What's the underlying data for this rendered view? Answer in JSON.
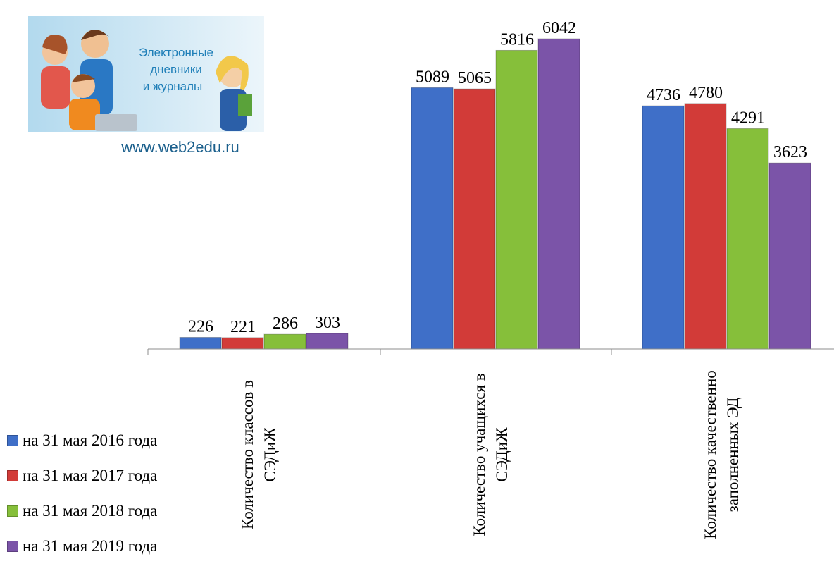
{
  "logo": {
    "lines": [
      "Электронные",
      "дневники",
      "и журналы"
    ],
    "url": "www.web2edu.ru"
  },
  "chart_data": {
    "type": "bar",
    "categories": [
      [
        "Количество классов в",
        "СЭДиЖ"
      ],
      [
        "Количество учащихся в",
        "СЭДиЖ"
      ],
      [
        "Количество качественно",
        "заполненных ЭД"
      ]
    ],
    "series": [
      {
        "name": "на 31 мая 2016 года",
        "color": "#3f6fc8",
        "values": [
          226,
          5089,
          4736
        ]
      },
      {
        "name": "на 31 мая 2017 года",
        "color": "#d23b38",
        "values": [
          221,
          5065,
          4780
        ]
      },
      {
        "name": "на 31 мая 2018 года",
        "color": "#86bf3a",
        "values": [
          286,
          5816,
          4291
        ]
      },
      {
        "name": "на 31 мая 2019 года",
        "color": "#7b54a8",
        "values": [
          303,
          6042,
          3623
        ]
      }
    ],
    "legend_position": "left"
  }
}
